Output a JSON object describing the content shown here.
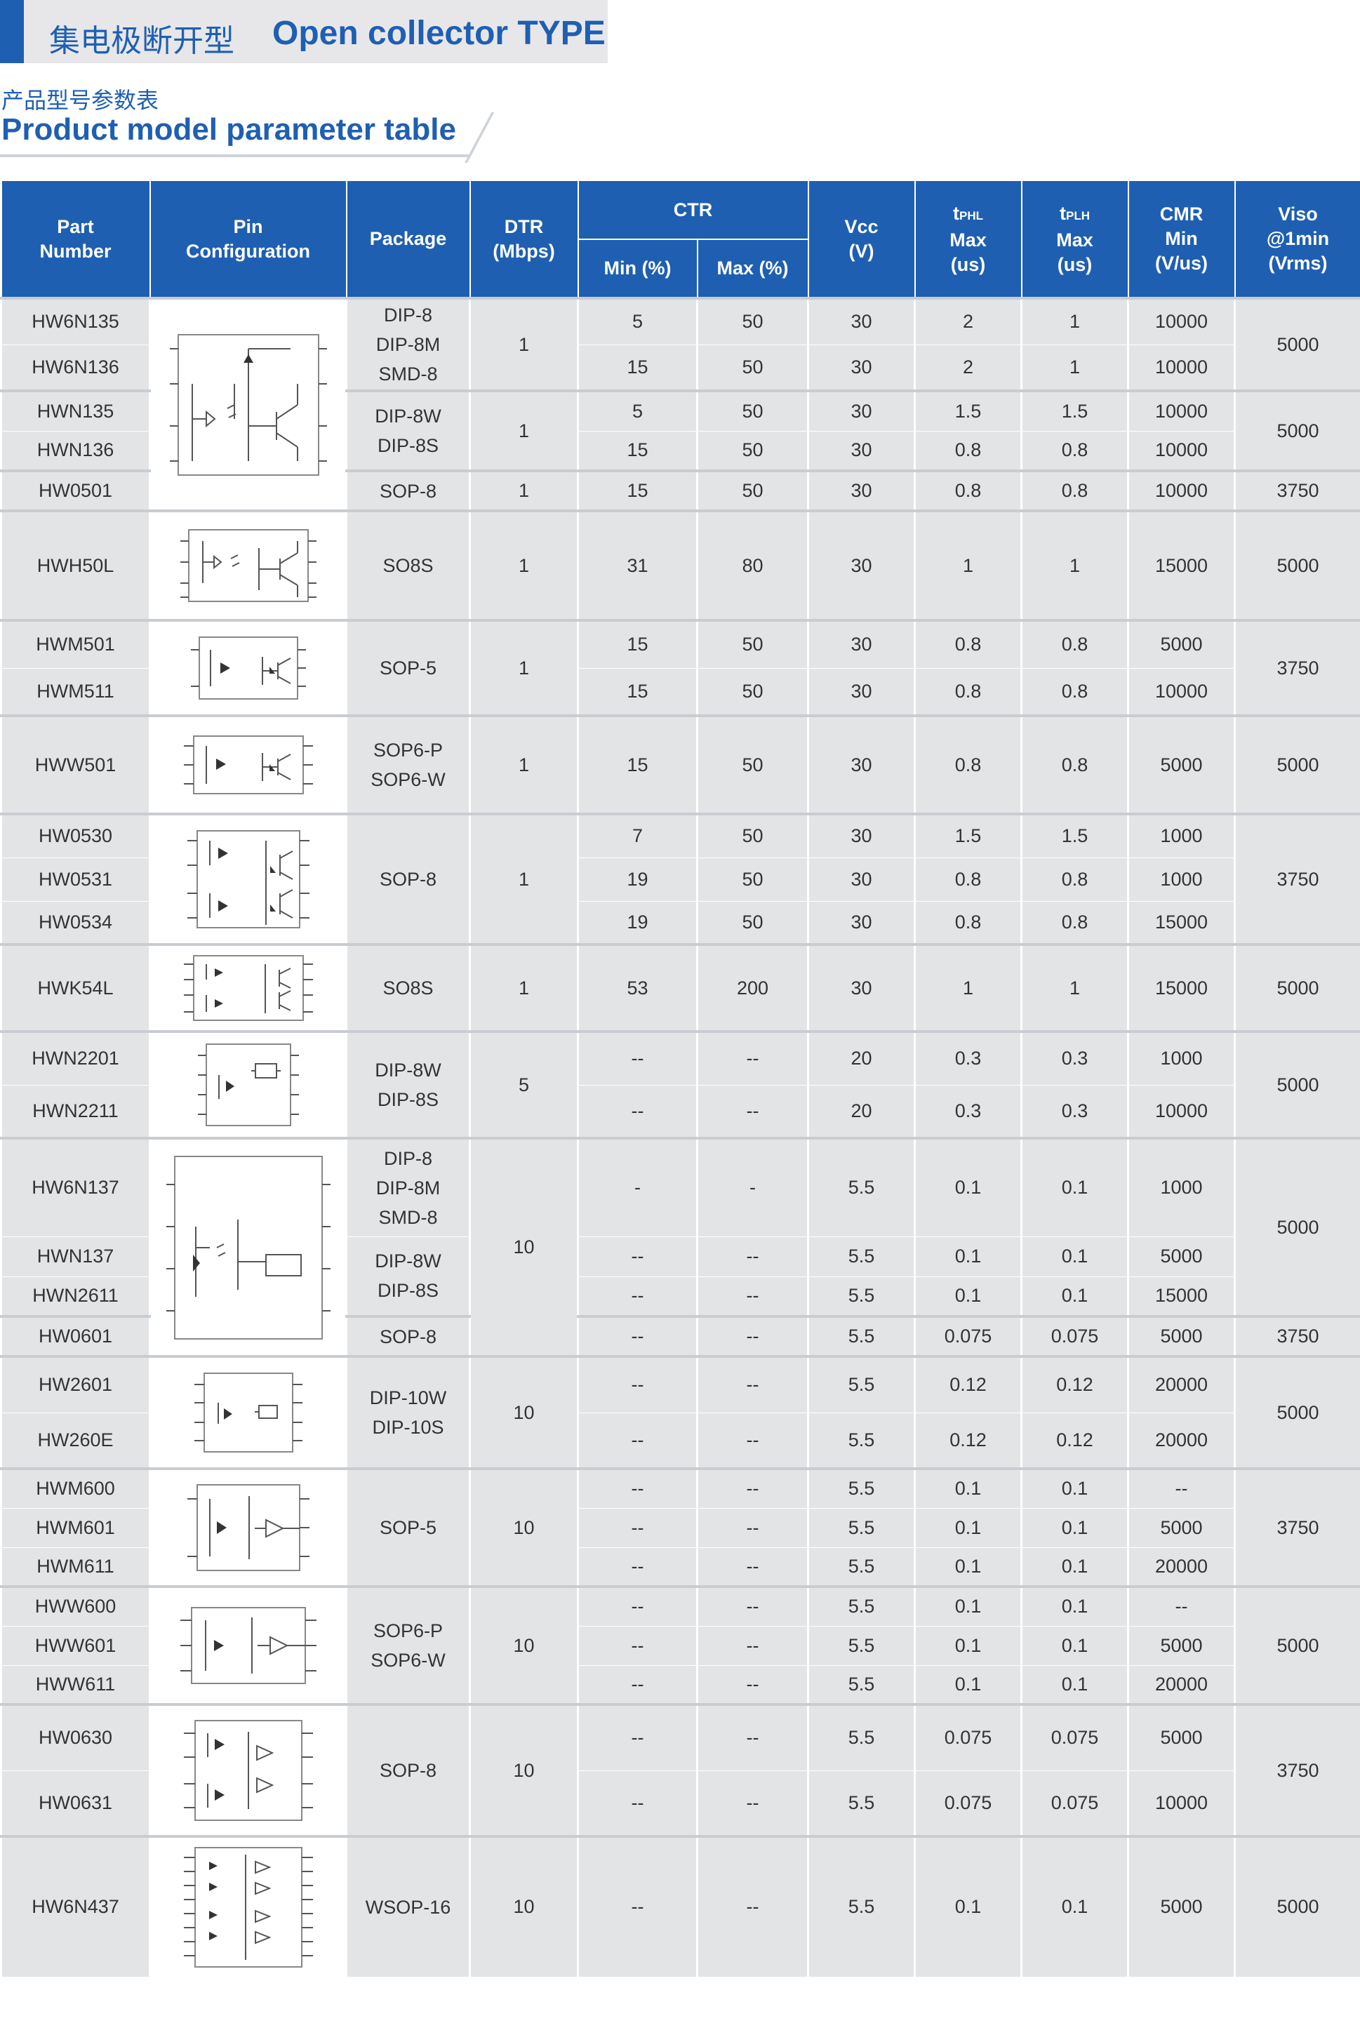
{
  "header": {
    "title_cn": "集电极断开型",
    "title_en": "Open collector TYPE"
  },
  "subheader": {
    "cn": "产品型号参数表",
    "en": "Product model parameter table"
  },
  "columns": {
    "part": [
      "Part",
      "Number"
    ],
    "pin": [
      "Pin",
      "Configuration"
    ],
    "package": "Package",
    "dtr": [
      "DTR",
      "(Mbps)"
    ],
    "ctr": "CTR",
    "ctr_min": "Min (%)",
    "ctr_max": "Max (%)",
    "vcc": [
      "Vcc",
      "(V)"
    ],
    "tphl": [
      "t",
      "PHL",
      "Max",
      "(us)"
    ],
    "tplh": [
      "t",
      "PLH",
      "Max",
      "(us)"
    ],
    "cmr": [
      "CMR",
      "Min",
      "(V/us)"
    ],
    "viso": [
      "Viso",
      "@1min",
      "(Vrms)"
    ]
  },
  "rows": [
    {
      "part": "HW6N135",
      "min": "5",
      "max": "50",
      "vcc": "30",
      "tphl": "2",
      "tplh": "1",
      "cmr": "10000"
    },
    {
      "part": "HW6N136",
      "min": "15",
      "max": "50",
      "vcc": "30",
      "tphl": "2",
      "tplh": "1",
      "cmr": "10000"
    },
    {
      "part": "HWN135",
      "min": "5",
      "max": "50",
      "vcc": "30",
      "tphl": "1.5",
      "tplh": "1.5",
      "cmr": "10000"
    },
    {
      "part": "HWN136",
      "min": "15",
      "max": "50",
      "vcc": "30",
      "tphl": "0.8",
      "tplh": "0.8",
      "cmr": "10000"
    },
    {
      "part": "HW0501",
      "min": "15",
      "max": "50",
      "vcc": "30",
      "tphl": "0.8",
      "tplh": "0.8",
      "cmr": "10000"
    },
    {
      "part": "HWH50L",
      "min": "31",
      "max": "80",
      "vcc": "30",
      "tphl": "1",
      "tplh": "1",
      "cmr": "15000"
    },
    {
      "part": "HWM501",
      "min": "15",
      "max": "50",
      "vcc": "30",
      "tphl": "0.8",
      "tplh": "0.8",
      "cmr": "5000"
    },
    {
      "part": "HWM511",
      "min": "15",
      "max": "50",
      "vcc": "30",
      "tphl": "0.8",
      "tplh": "0.8",
      "cmr": "10000"
    },
    {
      "part": "HWW501",
      "min": "15",
      "max": "50",
      "vcc": "30",
      "tphl": "0.8",
      "tplh": "0.8",
      "cmr": "5000"
    },
    {
      "part": "HW0530",
      "min": "7",
      "max": "50",
      "vcc": "30",
      "tphl": "1.5",
      "tplh": "1.5",
      "cmr": "1000"
    },
    {
      "part": "HW0531",
      "min": "19",
      "max": "50",
      "vcc": "30",
      "tphl": "0.8",
      "tplh": "0.8",
      "cmr": "1000"
    },
    {
      "part": "HW0534",
      "min": "19",
      "max": "50",
      "vcc": "30",
      "tphl": "0.8",
      "tplh": "0.8",
      "cmr": "15000"
    },
    {
      "part": "HWK54L",
      "min": "53",
      "max": "200",
      "vcc": "30",
      "tphl": "1",
      "tplh": "1",
      "cmr": "15000"
    },
    {
      "part": "HWN2201",
      "min": "--",
      "max": "--",
      "vcc": "20",
      "tphl": "0.3",
      "tplh": "0.3",
      "cmr": "1000"
    },
    {
      "part": "HWN2211",
      "min": "--",
      "max": "--",
      "vcc": "20",
      "tphl": "0.3",
      "tplh": "0.3",
      "cmr": "10000"
    },
    {
      "part": "HW6N137",
      "min": "-",
      "max": "-",
      "vcc": "5.5",
      "tphl": "0.1",
      "tplh": "0.1",
      "cmr": "1000"
    },
    {
      "part": "HWN137",
      "min": "--",
      "max": "--",
      "vcc": "5.5",
      "tphl": "0.1",
      "tplh": "0.1",
      "cmr": "5000"
    },
    {
      "part": "HWN2611",
      "min": "--",
      "max": "--",
      "vcc": "5.5",
      "tphl": "0.1",
      "tplh": "0.1",
      "cmr": "15000"
    },
    {
      "part": "HW0601",
      "min": "--",
      "max": "--",
      "vcc": "5.5",
      "tphl": "0.075",
      "tplh": "0.075",
      "cmr": "5000"
    },
    {
      "part": "HW2601",
      "min": "--",
      "max": "--",
      "vcc": "5.5",
      "tphl": "0.12",
      "tplh": "0.12",
      "cmr": "20000"
    },
    {
      "part": "HW260E",
      "min": "--",
      "max": "--",
      "vcc": "5.5",
      "tphl": "0.12",
      "tplh": "0.12",
      "cmr": "20000"
    },
    {
      "part": "HWM600",
      "min": "--",
      "max": "--",
      "vcc": "5.5",
      "tphl": "0.1",
      "tplh": "0.1",
      "cmr": "--"
    },
    {
      "part": "HWM601",
      "min": "--",
      "max": "--",
      "vcc": "5.5",
      "tphl": "0.1",
      "tplh": "0.1",
      "cmr": "5000"
    },
    {
      "part": "HWM611",
      "min": "--",
      "max": "--",
      "vcc": "5.5",
      "tphl": "0.1",
      "tplh": "0.1",
      "cmr": "20000"
    },
    {
      "part": "HWW600",
      "min": "--",
      "max": "--",
      "vcc": "5.5",
      "tphl": "0.1",
      "tplh": "0.1",
      "cmr": "--"
    },
    {
      "part": "HWW601",
      "min": "--",
      "max": "--",
      "vcc": "5.5",
      "tphl": "0.1",
      "tplh": "0.1",
      "cmr": "5000"
    },
    {
      "part": "HWW611",
      "min": "--",
      "max": "--",
      "vcc": "5.5",
      "tphl": "0.1",
      "tplh": "0.1",
      "cmr": "20000"
    },
    {
      "part": "HW0630",
      "min": "--",
      "max": "--",
      "vcc": "5.5",
      "tphl": "0.075",
      "tplh": "0.075",
      "cmr": "5000"
    },
    {
      "part": "HW0631",
      "min": "--",
      "max": "--",
      "vcc": "5.5",
      "tphl": "0.075",
      "tplh": "0.075",
      "cmr": "10000"
    },
    {
      "part": "HW6N437",
      "min": "--",
      "max": "--",
      "vcc": "5.5",
      "tphl": "0.1",
      "tplh": "0.1",
      "cmr": "5000"
    }
  ],
  "groups": [
    {
      "packages": [
        "DIP-8",
        "DIP-8M",
        "SMD-8"
      ],
      "dtr": "1",
      "viso": "5000"
    },
    {
      "packages": [
        "DIP-8W",
        "DIP-8S"
      ],
      "dtr": "1",
      "viso": "5000"
    },
    {
      "packages": [
        "SOP-8"
      ],
      "dtr": "1",
      "viso": "3750"
    },
    {
      "packages": [
        "SO8S"
      ],
      "dtr": "1",
      "viso": "5000"
    },
    {
      "packages": [
        "SOP-5"
      ],
      "dtr": "1",
      "viso": "3750"
    },
    {
      "packages": [
        "SOP6-P",
        "SOP6-W"
      ],
      "dtr": "1",
      "viso": "5000"
    },
    {
      "packages": [
        "SOP-8"
      ],
      "dtr": "1",
      "viso": "3750"
    },
    {
      "packages": [
        "SO8S"
      ],
      "dtr": "1",
      "viso": "5000"
    },
    {
      "packages": [
        "DIP-8W",
        "DIP-8S"
      ],
      "dtr": "5",
      "viso": "5000"
    },
    {
      "packages": [
        "DIP-8",
        "DIP-8M",
        "SMD-8"
      ],
      "dtr": "10",
      "viso": "5000"
    },
    {
      "packages": [
        "DIP-8W",
        "DIP-8S"
      ],
      "viso": "3750"
    },
    {
      "packages": [
        "SOP-8"
      ]
    },
    {
      "packages": [
        "DIP-10W",
        "DIP-10S"
      ],
      "dtr": "10",
      "viso": "5000"
    },
    {
      "packages": [
        "SOP-5"
      ],
      "dtr": "10",
      "viso": "3750"
    },
    {
      "packages": [
        "SOP6-P",
        "SOP6-W"
      ],
      "dtr": "10",
      "viso": "5000"
    },
    {
      "packages": [
        "SOP-8"
      ],
      "dtr": "10",
      "viso": "3750"
    },
    {
      "packages": [
        "WSOP-16"
      ],
      "dtr": "10",
      "viso": "5000"
    }
  ],
  "colors": {
    "accent": "#1f5fb2",
    "header_bg": "#1f5fb2",
    "cell_bg": "#e3e4e6",
    "bar_bg": "#e7e7e9"
  },
  "icons": [
    "optocoupler-transistor-diagram",
    "optocoupler-gate-diagram"
  ]
}
